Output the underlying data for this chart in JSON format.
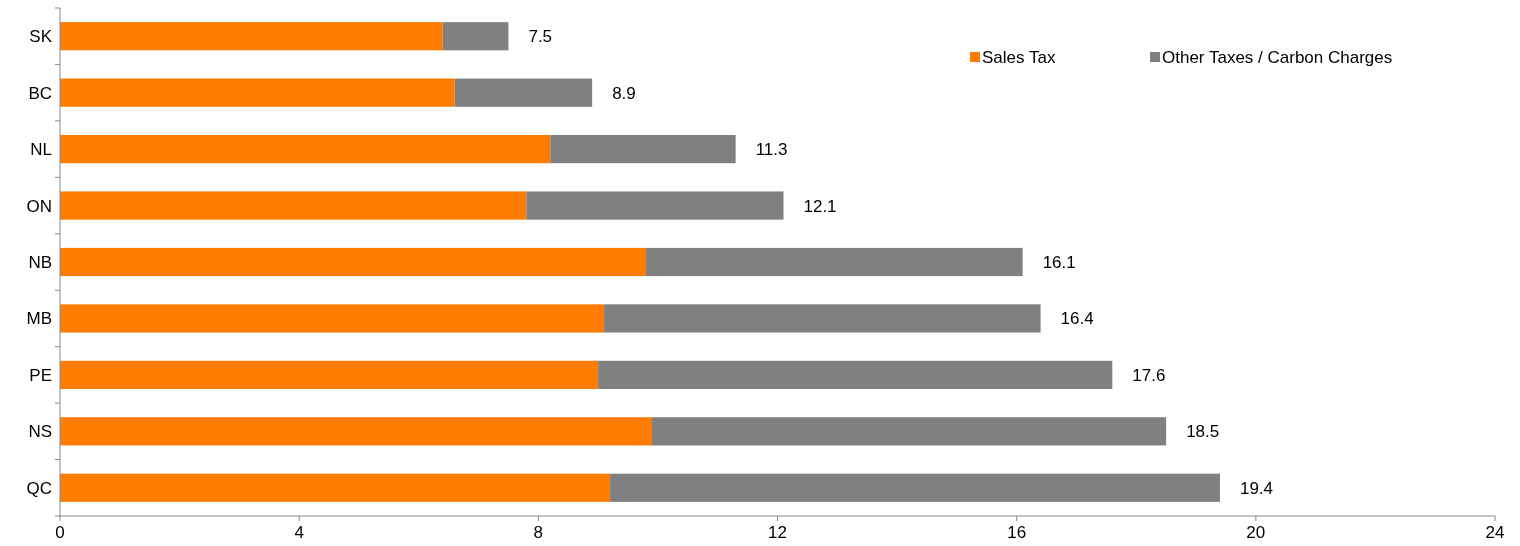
{
  "chart_data": {
    "type": "bar",
    "orientation": "horizontal",
    "stacked": true,
    "categories": [
      "SK",
      "BC",
      "NL",
      "ON",
      "NB",
      "MB",
      "PE",
      "NS",
      "QC"
    ],
    "series": [
      {
        "name": "Sales Tax",
        "color": "#ff7c00",
        "values": [
          6.4,
          6.6,
          8.2,
          7.8,
          9.8,
          9.1,
          9.0,
          9.9,
          9.2
        ]
      },
      {
        "name": "Other Taxes / Carbon Charges",
        "color": "#808080",
        "values": [
          1.1,
          2.3,
          3.1,
          4.3,
          6.3,
          7.3,
          8.6,
          8.6,
          10.2
        ]
      }
    ],
    "totals": [
      "7.5",
      "8.9",
      "11.3",
      "12.1",
      "16.1",
      "16.4",
      "17.6",
      "18.5",
      "19.4"
    ],
    "xlim": [
      0,
      24
    ],
    "xticks": [
      0,
      4,
      8,
      12,
      16,
      20,
      24
    ],
    "grid": false,
    "legend": "top right"
  }
}
